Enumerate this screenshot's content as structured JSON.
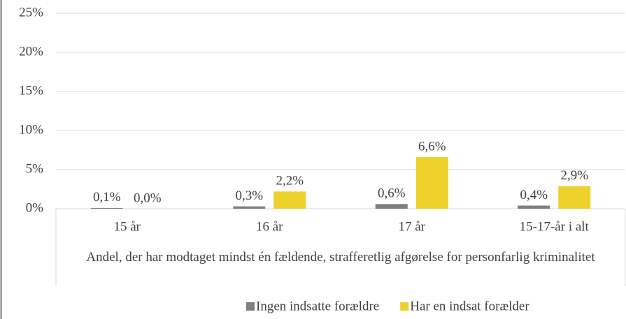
{
  "chart_data": {
    "type": "bar",
    "x_label": "Andel, der har modtaget mindst én fældende, strafferetlig afgørelse for personfarlig kriminalitet",
    "categories": [
      "15 år",
      "16 år",
      "17 år",
      "15-17-år i alt"
    ],
    "series": [
      {
        "name": "Ingen indsatte forældre",
        "color": "#7f7f7f",
        "values": [
          0.1,
          0.3,
          0.6,
          0.4
        ],
        "value_labels": [
          "0,1%",
          "0,3%",
          "0,6%",
          "0,4%"
        ]
      },
      {
        "name": "Har en indsat forælder",
        "color": "#ecd22a",
        "values": [
          0.0,
          2.2,
          6.6,
          2.9
        ],
        "value_labels": [
          "0,0%",
          "2,2%",
          "6,6%",
          "2,9%"
        ]
      }
    ],
    "ylim": [
      0,
      25
    ],
    "yticks": [
      {
        "value": 0,
        "label": "0%"
      },
      {
        "value": 5,
        "label": "5%"
      },
      {
        "value": 10,
        "label": "10%"
      },
      {
        "value": 15,
        "label": "15%"
      },
      {
        "value": 20,
        "label": "20%"
      },
      {
        "value": 25,
        "label": "25%"
      }
    ],
    "grid": true,
    "legend": "bottom"
  }
}
